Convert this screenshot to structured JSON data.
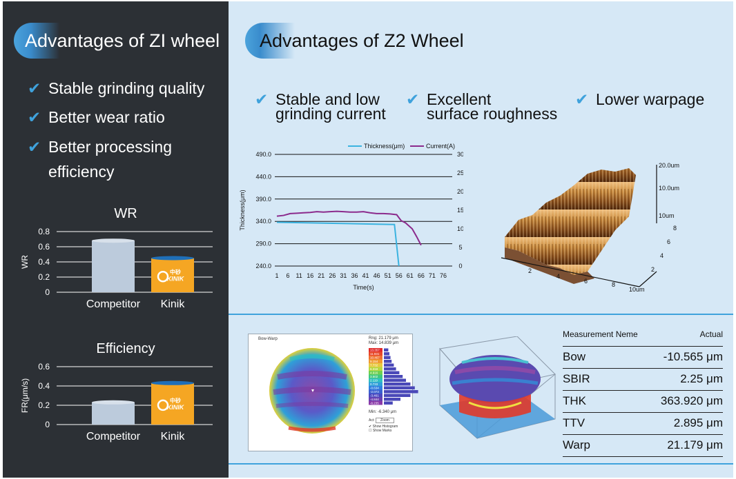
{
  "left": {
    "title": "Advantages of ZI wheel",
    "advantages": [
      "Stable grinding quality",
      "Better wear ratio",
      "Better processing",
      "efficiency"
    ]
  },
  "right": {
    "title": "Advantages of Z2 Wheel",
    "advantages": [
      {
        "line1": "Stable and low",
        "line2": "grinding current"
      },
      {
        "line1": "Excellent",
        "line2": "surface roughness"
      },
      {
        "line1": "Lower warpage",
        "line2": ""
      }
    ]
  },
  "chart_data": [
    {
      "type": "bar",
      "title": "WR",
      "ylabel": "WR",
      "categories": [
        "Competitor",
        "Kinik"
      ],
      "values": [
        0.68,
        0.45
      ],
      "ylim": [
        0,
        0.8
      ],
      "yticks": [
        "0",
        "0.2",
        "0.4",
        "0.6",
        "0.8"
      ],
      "colors": [
        "#bccbdc",
        "#f5a623"
      ],
      "cap_colors": [
        "#d7e0ea",
        "#1f6fb8"
      ]
    },
    {
      "type": "bar",
      "title": "Efficiency",
      "ylabel": "FR(μm/s)",
      "categories": [
        "Competitor",
        "Kinik"
      ],
      "values": [
        0.23,
        0.43
      ],
      "ylim": [
        0,
        0.6
      ],
      "yticks": [
        "0",
        "0.2",
        "0.4",
        "0.6"
      ],
      "colors": [
        "#bccbdc",
        "#f5a623"
      ],
      "cap_colors": [
        "#d7e0ea",
        "#1f6fb8"
      ]
    },
    {
      "type": "line",
      "xlabel": "Time(s)",
      "ylabel": "Thickness(μm)",
      "ylabel_right": "Current(A)",
      "x_ticks": [
        "1",
        "6",
        "11",
        "16",
        "21",
        "26",
        "31",
        "36",
        "41",
        "46",
        "51",
        "56",
        "61",
        "66",
        "71",
        "76"
      ],
      "y_ticks": [
        "240.0",
        "290.0",
        "340.0",
        "390.0",
        "440.0",
        "490.0"
      ],
      "y_right_ticks": [
        "0",
        "5",
        "10",
        "15",
        "20",
        "25",
        "30"
      ],
      "ylim": [
        240,
        490
      ],
      "ylim_right": [
        0,
        30
      ],
      "xlim": [
        1,
        76
      ],
      "series": [
        {
          "name": "Thickness(μm)",
          "axis": "left",
          "color": "#3bb3e0",
          "x": [
            1,
            54,
            56
          ],
          "y": [
            338,
            333,
            240
          ]
        },
        {
          "name": "Current(A)",
          "axis": "right",
          "color": "#8b2a8c",
          "x": [
            1,
            4,
            7,
            10,
            13,
            16,
            19,
            22,
            25,
            28,
            31,
            34,
            37,
            40,
            43,
            46,
            49,
            52,
            55,
            57,
            59,
            62,
            64,
            66
          ],
          "y": [
            13.4,
            13.6,
            14.1,
            14.2,
            14.3,
            14.4,
            14.6,
            14.5,
            14.6,
            14.7,
            14.6,
            14.5,
            14.5,
            14.6,
            14.3,
            14.1,
            14.1,
            14.0,
            13.8,
            12.2,
            11.6,
            10.0,
            7.9,
            5.6
          ]
        }
      ]
    }
  ],
  "surface3d": {
    "z_labels": [
      "20.0um",
      "10.0um",
      "10um"
    ],
    "x_ticks": [
      "2",
      "4",
      "6",
      "8",
      "10um"
    ],
    "y_ticks": [
      "2",
      "4",
      "6",
      "8"
    ]
  },
  "bow_warp": {
    "panel_title": "Bow-Warp",
    "rng": "Rng: 21.179 μm",
    "max": "Max: 14.839 μm",
    "min": "Min: -6.340 μm",
    "histo_values": [
      "13.357",
      "11.931",
      "10.467",
      "9.154",
      "7.732",
      "6.318",
      "4.916",
      "3.502",
      "2.119",
      "0.733",
      "-0.634",
      "-2.073",
      "-3.461",
      "-4.844",
      "-6.235"
    ],
    "act_label": "Act:",
    "act_value": "Zoom",
    "opt1": "Show Histogram",
    "opt2": "Show Marks"
  },
  "measurement": {
    "header_name": "Measurement Neme",
    "header_actual": "Actual",
    "rows": [
      {
        "name": "Bow",
        "value": "-10.565 μm"
      },
      {
        "name": "SBIR",
        "value": "2.25 μm"
      },
      {
        "name": "THK",
        "value": "363.920 μm"
      },
      {
        "name": "TTV",
        "value": "2.895 μm"
      },
      {
        "name": "Warp",
        "value": "21.179 μm"
      }
    ]
  },
  "brand": {
    "logo_text": "KINIK",
    "logo_cn": "中砂"
  }
}
